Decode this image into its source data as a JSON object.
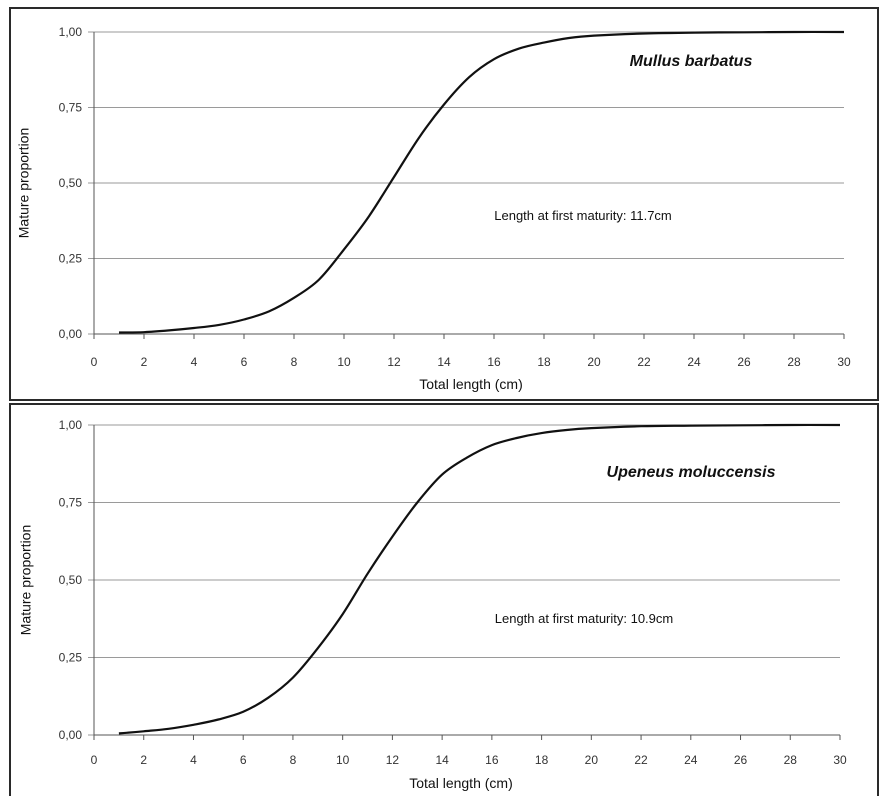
{
  "chart_data": [
    {
      "type": "line",
      "title": "Mullus barbatus",
      "annotation": "Length at first maturity: 11.7cm",
      "xlabel": "Total length (cm)",
      "ylabel": "Mature proportion",
      "xlim": [
        0,
        30
      ],
      "ylim": [
        0,
        1
      ],
      "x_ticks": [
        "0",
        "2",
        "4",
        "6",
        "8",
        "10",
        "12",
        "14",
        "16",
        "18",
        "20",
        "22",
        "24",
        "26",
        "28",
        "30"
      ],
      "y_ticks": [
        "0,00",
        "0,25",
        "0,50",
        "0,75",
        "1,00"
      ],
      "grid": "horizontal",
      "x": [
        1,
        2,
        3,
        4,
        5,
        6,
        7,
        8,
        9,
        10,
        11,
        12,
        13,
        14,
        15,
        16,
        17,
        18,
        19,
        20,
        22,
        24,
        26,
        28,
        30
      ],
      "y": [
        0.005,
        0.006,
        0.012,
        0.02,
        0.03,
        0.048,
        0.075,
        0.12,
        0.18,
        0.28,
        0.39,
        0.52,
        0.65,
        0.76,
        0.85,
        0.91,
        0.945,
        0.965,
        0.98,
        0.988,
        0.995,
        0.998,
        0.999,
        1.0,
        1.0
      ]
    },
    {
      "type": "line",
      "title": "Upeneus moluccensis",
      "annotation": "Length at first maturity: 10.9cm",
      "xlabel": "Total length (cm)",
      "ylabel": "Mature proportion",
      "xlim": [
        0,
        30
      ],
      "ylim": [
        0,
        1
      ],
      "x_ticks": [
        "0",
        "2",
        "4",
        "6",
        "8",
        "10",
        "12",
        "14",
        "16",
        "18",
        "20",
        "22",
        "24",
        "26",
        "28",
        "30"
      ],
      "y_ticks": [
        "0,00",
        "0,25",
        "0,50",
        "0,75",
        "1,00"
      ],
      "grid": "horizontal",
      "x": [
        1,
        2,
        3,
        4,
        5,
        6,
        7,
        8,
        9,
        10,
        11,
        12,
        13,
        14,
        15,
        16,
        17,
        18,
        19,
        20,
        22,
        24,
        26,
        28,
        30
      ],
      "y": [
        0.005,
        0.012,
        0.02,
        0.033,
        0.05,
        0.075,
        0.12,
        0.185,
        0.28,
        0.39,
        0.52,
        0.64,
        0.75,
        0.84,
        0.895,
        0.935,
        0.958,
        0.974,
        0.984,
        0.99,
        0.996,
        0.998,
        0.999,
        1.0,
        1.0
      ]
    }
  ]
}
